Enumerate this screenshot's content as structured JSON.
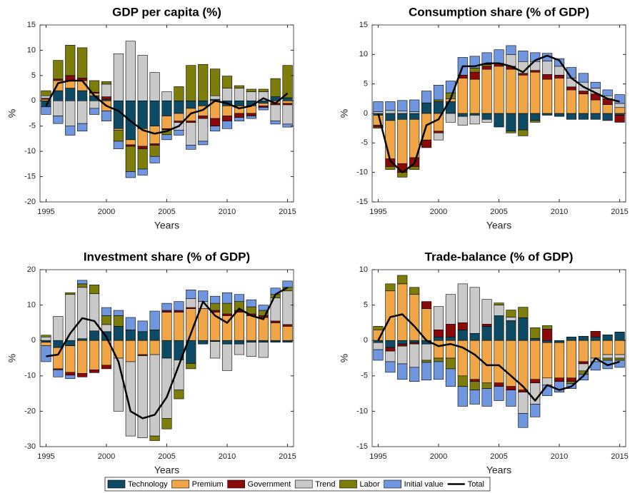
{
  "legend": {
    "entries": [
      {
        "name": "Technology",
        "color": "#0e4a64",
        "mark": "bar"
      },
      {
        "name": "Premium",
        "color": "#f0a646",
        "mark": "bar"
      },
      {
        "name": "Government",
        "color": "#8a0a0a",
        "mark": "bar"
      },
      {
        "name": "Trend",
        "color": "#c9c9c9",
        "mark": "bar"
      },
      {
        "name": "Labor",
        "color": "#7d7d0c",
        "mark": "bar"
      },
      {
        "name": "Initial value",
        "color": "#7196e0",
        "mark": "bar"
      },
      {
        "name": "Total",
        "color": "#000000",
        "mark": "line"
      }
    ]
  },
  "chart_data": [
    {
      "type": "bar",
      "title": "GDP per capita (%)",
      "xlabel": "Years",
      "ylabel": "%",
      "x": [
        1995,
        1996,
        1997,
        1998,
        1999,
        2000,
        2001,
        2002,
        2003,
        2004,
        2005,
        2006,
        2007,
        2008,
        2009,
        2010,
        2011,
        2012,
        2013,
        2014,
        2015
      ],
      "xlim": [
        1994.5,
        2015.5
      ],
      "xticks": [
        1995,
        2000,
        2005,
        2010,
        2015
      ],
      "ylim": [
        -20,
        15
      ],
      "yticks": [
        -20,
        -15,
        -10,
        -5,
        0,
        5,
        10,
        15
      ],
      "series": [
        {
          "values": [
            -1.2,
            2,
            2.5,
            2,
            1,
            0.3,
            -5.5,
            -7.7,
            -5.5,
            -5,
            -3,
            -2.5,
            -1.5,
            -1,
            0.3,
            -1,
            -1,
            -1,
            -0.5,
            0.8,
            0.6
          ]
        },
        {
          "values": [
            0.3,
            2,
            1.5,
            2,
            0.5,
            -2,
            -0.3,
            -1,
            -3.5,
            -3.5,
            -2.5,
            -1.5,
            -2.5,
            -2,
            -3.5,
            -2,
            -1.5,
            -1.5,
            -0.5,
            -0.5,
            -0.5
          ]
        },
        {
          "values": [
            0.2,
            0.3,
            1,
            0.5,
            0.2,
            0.5,
            0,
            -0.3,
            -0.5,
            -0.3,
            -0.2,
            -0.3,
            -0.3,
            -0.5,
            -1.5,
            -1,
            -0.8,
            -0.5,
            -0.3,
            -0.3,
            -0.3
          ]
        },
        {
          "values": [
            0.5,
            -3,
            -5,
            -4.5,
            -1.5,
            2.5,
            9.3,
            11.8,
            9,
            5.6,
            1.8,
            -1.5,
            -4.5,
            -4.5,
            0.7,
            2.5,
            2.5,
            1.8,
            1.8,
            -3.2,
            -3.8
          ]
        },
        {
          "values": [
            1,
            3.7,
            6,
            6,
            2.3,
            0.5,
            -2.2,
            -5,
            -4,
            -2.2,
            -1,
            2.8,
            7,
            7.2,
            5.3,
            2.4,
            0.5,
            0.5,
            0.5,
            3.6,
            6.4
          ]
        },
        {
          "values": [
            -1.5,
            -1.5,
            -1.8,
            -1.5,
            -1.2,
            -2,
            -1.5,
            -1.2,
            -1.2,
            -1.3,
            -1,
            -1,
            -0.8,
            -0.7,
            -1,
            -1.5,
            -0.7,
            -0.5,
            -0.5,
            -0.6,
            -0.6
          ]
        },
        {
          "values": [
            -1,
            3.5,
            4,
            4,
            1,
            -1,
            -2,
            -4,
            -5.8,
            -6.5,
            -6,
            -5,
            -2.5,
            -1.8,
            0,
            -0.5,
            -1.5,
            -1,
            0.5,
            -0.5,
            1.5
          ]
        }
      ]
    },
    {
      "type": "bar",
      "title": "Consumption share (% of GDP)",
      "xlabel": "Years",
      "ylabel": "%",
      "x": [
        1995,
        1996,
        1997,
        1998,
        1999,
        2000,
        2001,
        2002,
        2003,
        2004,
        2005,
        2006,
        2007,
        2008,
        2009,
        2010,
        2011,
        2012,
        2013,
        2014,
        2015
      ],
      "xlim": [
        1994.5,
        2015.5
      ],
      "xticks": [
        1995,
        2000,
        2005,
        2010,
        2015
      ],
      "ylim": [
        -15,
        15
      ],
      "yticks": [
        -15,
        -10,
        -5,
        0,
        5,
        10,
        15
      ],
      "series": [
        {
          "values": [
            -0.3,
            -1.2,
            -1,
            -1,
            1.8,
            2,
            2,
            -0.5,
            -0.3,
            -1,
            -2.3,
            -3,
            -2.8,
            -1.2,
            -0.3,
            -0.5,
            -1,
            -1,
            -1,
            -1.2,
            -0.3
          ]
        },
        {
          "values": [
            -1.7,
            -6.5,
            -7.5,
            -6.5,
            -4.5,
            -3,
            0.5,
            6,
            5.8,
            7.5,
            8,
            7.5,
            6.5,
            7,
            5.8,
            6,
            4,
            3.3,
            2.3,
            1.5,
            1
          ]
        },
        {
          "values": [
            -0.3,
            -1.3,
            -1.5,
            -1.5,
            -1.3,
            -0.3,
            0,
            0.5,
            1.2,
            0.5,
            0.5,
            0.5,
            0.3,
            0.3,
            0.8,
            0.5,
            0.5,
            0.5,
            1,
            1,
            -1.2
          ]
        },
        {
          "values": [
            0.3,
            0.5,
            0.4,
            0.3,
            0,
            -1.2,
            -1.5,
            -1.5,
            -1.5,
            -0.5,
            0,
            2,
            2,
            1.5,
            2.3,
            1.5,
            1.5,
            1.5,
            1,
            0.5,
            0.7
          ]
        },
        {
          "values": [
            -0.2,
            -0.5,
            -0.8,
            -0.5,
            0,
            0.3,
            1,
            0,
            0.7,
            0.3,
            0,
            -0.3,
            -1,
            -0.3,
            0,
            0,
            0,
            0,
            0,
            0,
            0
          ]
        },
        {
          "values": [
            1.7,
            1.5,
            1.8,
            2,
            2,
            2.5,
            2,
            3,
            2,
            2,
            2.3,
            1.5,
            1.8,
            1.5,
            1.3,
            1.3,
            1.8,
            1.5,
            1,
            1,
            1.5
          ]
        },
        {
          "values": [
            0,
            -8,
            -10,
            -8.5,
            -2,
            -1,
            2.5,
            8,
            8,
            8.5,
            8.5,
            8,
            7,
            9,
            9.8,
            9,
            6,
            4.5,
            3.5,
            2.5,
            2
          ]
        }
      ]
    },
    {
      "type": "bar",
      "title": "Investment share (% of GDP)",
      "xlabel": "Years",
      "ylabel": "%",
      "x": [
        1995,
        1996,
        1997,
        1998,
        1999,
        2000,
        2001,
        2002,
        2003,
        2004,
        2005,
        2006,
        2007,
        2008,
        2009,
        2010,
        2011,
        2012,
        2013,
        2014,
        2015
      ],
      "xlim": [
        1994.5,
        2015.5
      ],
      "xticks": [
        1995,
        2000,
        2005,
        2010,
        2015
      ],
      "ylim": [
        -30,
        20
      ],
      "yticks": [
        -30,
        -20,
        -10,
        0,
        10,
        20
      ],
      "series": [
        {
          "values": [
            -0.5,
            -2,
            -1.5,
            0.5,
            2.7,
            2.5,
            4,
            3,
            2.5,
            3,
            -5,
            -5.5,
            -6.5,
            -1,
            -0.3,
            -1,
            -1,
            -0.5,
            -0.5,
            -0.5,
            -0.5
          ]
        },
        {
          "values": [
            -1,
            -6,
            -7.5,
            -9.3,
            -8.3,
            -7,
            -5,
            -6,
            -4,
            -4,
            8,
            8,
            9,
            9,
            8,
            7,
            8,
            7,
            6.5,
            5,
            4
          ]
        },
        {
          "values": [
            0,
            -0.3,
            -0.8,
            -1,
            -0.8,
            -1,
            0,
            0,
            -0.3,
            0,
            0.5,
            0.5,
            0.3,
            0,
            0.5,
            0.5,
            0.5,
            0.5,
            0.5,
            0.5,
            0.5
          ]
        },
        {
          "values": [
            1,
            6.8,
            13,
            14.5,
            10.5,
            2,
            -15,
            -21,
            -23.2,
            -23,
            -17,
            -8.5,
            2.5,
            2,
            -4.7,
            -7.5,
            -3,
            -4,
            -4.3,
            6.5,
            9.5
          ]
        },
        {
          "values": [
            0.5,
            0,
            0.5,
            1,
            2.5,
            2.5,
            3,
            0,
            0,
            -1.3,
            -3,
            -2.5,
            -1.5,
            0,
            2,
            3,
            2.5,
            2,
            1.5,
            1,
            1
          ]
        },
        {
          "values": [
            -4.5,
            -2,
            -1,
            1,
            0,
            2.3,
            1.5,
            3.5,
            3,
            5.3,
            2,
            2.5,
            2.5,
            3,
            2,
            3,
            2,
            2,
            1.5,
            1.8,
            1.8
          ]
        },
        {
          "values": [
            -4.5,
            -4,
            2,
            6.3,
            5.5,
            1,
            -6,
            -20,
            -22,
            -21,
            -16,
            -7,
            2,
            11,
            7,
            5,
            9,
            7,
            6,
            13,
            15
          ]
        }
      ]
    },
    {
      "type": "bar",
      "title": "Trade-balance  (% of GDP)",
      "xlabel": "Years",
      "ylabel": "%",
      "x": [
        1995,
        1996,
        1997,
        1998,
        1999,
        2000,
        2001,
        2002,
        2003,
        2004,
        2005,
        2006,
        2007,
        2008,
        2009,
        2010,
        2011,
        2012,
        2013,
        2014,
        2015
      ],
      "xlim": [
        1994.5,
        2015.5
      ],
      "xticks": [
        1995,
        2000,
        2005,
        2010,
        2015
      ],
      "ylim": [
        -15,
        10
      ],
      "yticks": [
        -15,
        -10,
        -5,
        0,
        5,
        10
      ],
      "series": [
        {
          "values": [
            -0.3,
            -1,
            -0.5,
            -0.3,
            -0.5,
            0.5,
            0.5,
            1.5,
            1,
            2,
            3.5,
            2.8,
            3.2,
            0.3,
            -0.3,
            -0.3,
            0.5,
            0.6,
            0.5,
            0.8,
            1.2
          ]
        },
        {
          "values": [
            1.5,
            7,
            8,
            6.5,
            4.5,
            -2.5,
            -2.5,
            -5,
            -5.5,
            -6,
            -6,
            -6.5,
            -7,
            -5.5,
            -5,
            -5,
            -5.3,
            -3,
            -2.5,
            -2,
            -2
          ]
        },
        {
          "values": [
            0,
            -0.5,
            -0.3,
            -0.2,
            1,
            1,
            1.8,
            1,
            -0.3,
            0.3,
            -0.5,
            -0.5,
            -0.3,
            -0.5,
            1.6,
            -0.5,
            -0.5,
            -0.3,
            0.8,
            0,
            0
          ]
        },
        {
          "values": [
            -1,
            -1.5,
            -2.5,
            -3.3,
            -2.3,
            3.3,
            4.2,
            5.5,
            6.5,
            3.5,
            1.5,
            0.5,
            -3,
            -3,
            -1,
            0,
            0,
            -1,
            -0.5,
            -0.5,
            -0.5
          ]
        },
        {
          "values": [
            0.5,
            1,
            1.2,
            1,
            -0.3,
            -0.5,
            -1.5,
            -1.5,
            -1.2,
            -0.8,
            0.3,
            1,
            1.5,
            1.5,
            0.5,
            0,
            -0.3,
            -0.5,
            0,
            -0.3,
            -0.3
          ]
        },
        {
          "values": [
            -1.5,
            -1.5,
            -2.2,
            -2,
            -2.5,
            -2.5,
            -2.5,
            -2.8,
            -2,
            -2.5,
            -2,
            -2.3,
            -2,
            -1.8,
            -1.5,
            -1.5,
            -0.7,
            -0.8,
            -1.2,
            -1.2,
            -1
          ]
        },
        {
          "values": [
            0,
            3.3,
            3.7,
            2,
            0,
            -0.8,
            -0.5,
            -1,
            -2,
            -3.5,
            -3.5,
            -5,
            -6.5,
            -8.5,
            -6.3,
            -7,
            -6.5,
            -5,
            -2.5,
            -3.5,
            -3
          ]
        }
      ]
    }
  ]
}
